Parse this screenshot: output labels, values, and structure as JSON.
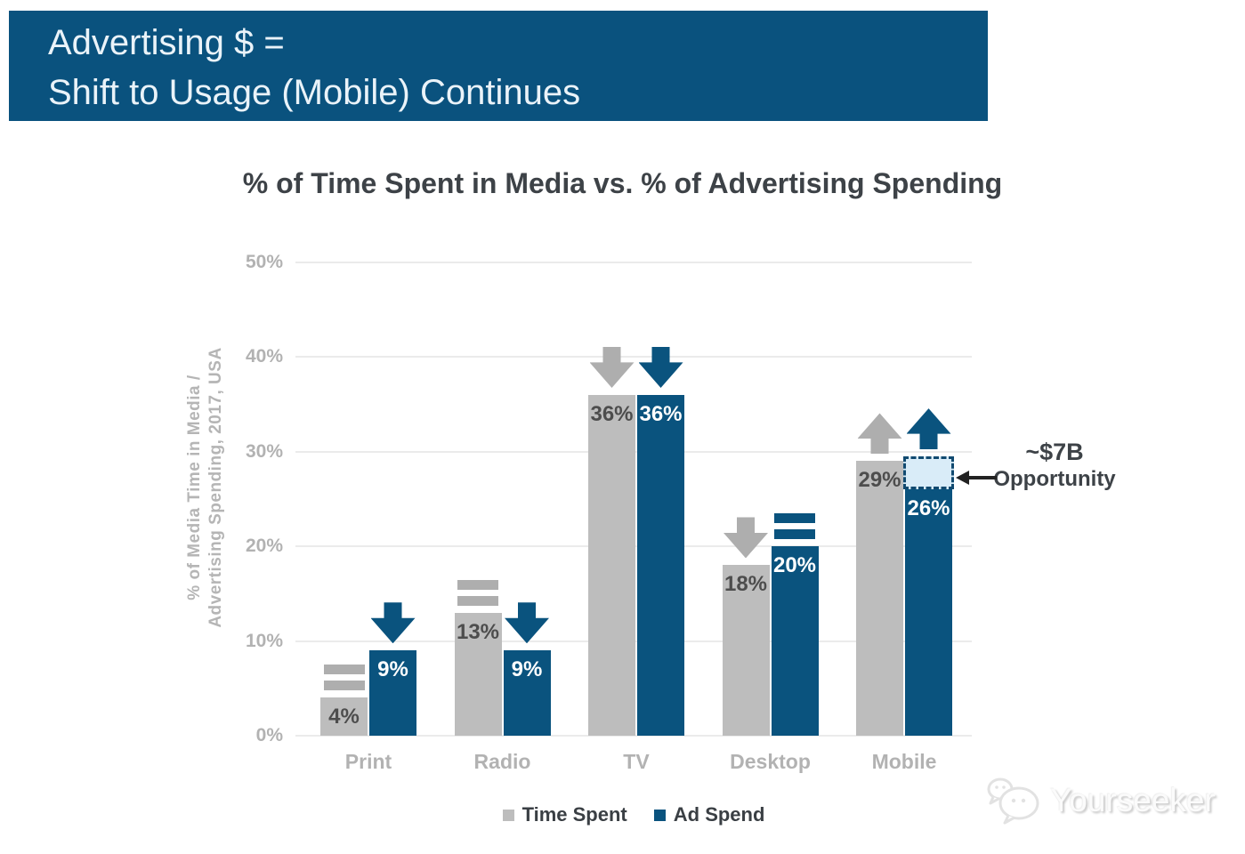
{
  "banner": {
    "line1": "Advertising $ =",
    "line2": "Shift to Usage (Mobile) Continues",
    "background_color": "#0a527e",
    "text_color": "#eaf3f9"
  },
  "chart_data": {
    "type": "bar",
    "title": "% of Time Spent in Media vs. % of Advertising Spending",
    "ylabel_lines": [
      "% of Media Time in Media /",
      "Advertising Spending, 2017, USA"
    ],
    "categories": [
      "Print",
      "Radio",
      "TV",
      "Desktop",
      "Mobile"
    ],
    "series": [
      {
        "name": "Time Spent",
        "color": "#bdbdbd",
        "indicator_color": "#aeaeae",
        "label_color": "#4d4d4d",
        "values": [
          4,
          13,
          36,
          18,
          29
        ],
        "trend": [
          "equal",
          "equal",
          "down",
          "down",
          "up"
        ]
      },
      {
        "name": "Ad Spend",
        "color": "#0a537e",
        "indicator_color": "#0a537e",
        "label_color": "#ffffff",
        "values": [
          9,
          9,
          36,
          20,
          26
        ],
        "trend": [
          "down",
          "down",
          "down",
          "equal",
          "up"
        ]
      }
    ],
    "yticks": [
      {
        "value": 0,
        "label": "0%"
      },
      {
        "value": 10,
        "label": "10%"
      },
      {
        "value": 20,
        "label": "20%"
      },
      {
        "value": 30,
        "label": "30%"
      },
      {
        "value": 40,
        "label": "40%"
      },
      {
        "value": 50,
        "label": "50%"
      }
    ],
    "ylim": [
      0,
      50
    ],
    "grid": true,
    "legend_position": "bottom",
    "value_suffix": "%",
    "annotation": {
      "line1": "~$7B",
      "line2": "Opportunity",
      "target_category": "Mobile",
      "target_series": "Ad Spend",
      "box_bottom_value": 26,
      "box_top_value": 29.5,
      "box_fill": "#d9ecf8",
      "box_border": "#114a70",
      "arrow_color": "#222222"
    }
  },
  "watermark": {
    "text": "Yourseeker",
    "icon": "wechat-icon"
  }
}
